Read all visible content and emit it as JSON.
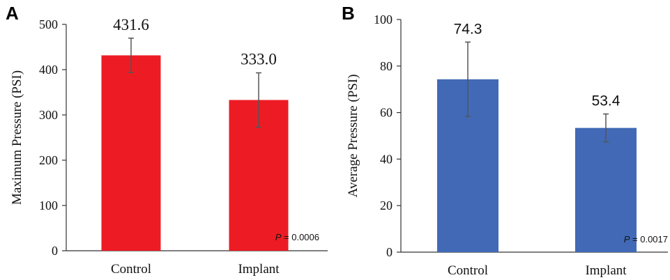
{
  "chart_data": [
    {
      "panel": "A",
      "type": "bar",
      "categories": [
        "Control",
        "Implant"
      ],
      "values": [
        431.6,
        333.0
      ],
      "value_labels": [
        "431.6",
        "333.0"
      ],
      "error": [
        38,
        60
      ],
      "ylabel": "Maximum Pressure (PSI)",
      "ylim": [
        0,
        500
      ],
      "yticks": [
        0,
        100,
        200,
        300,
        400,
        500
      ],
      "bar_color": "#ed1c24",
      "p_label": "P",
      "p_value": " = 0.0006",
      "value_font": "serif"
    },
    {
      "panel": "B",
      "type": "bar",
      "categories": [
        "Control",
        "Implant"
      ],
      "values": [
        74.3,
        53.4
      ],
      "value_labels": [
        "74.3",
        "53.4"
      ],
      "error": [
        16,
        6
      ],
      "ylabel": "Average Pressure (PSI)",
      "ylim": [
        0,
        100
      ],
      "yticks": [
        0,
        20,
        40,
        60,
        80,
        100
      ],
      "bar_color": "#4169b6",
      "p_label": "P",
      "p_value": " = 0.0017",
      "value_font": "sans"
    }
  ]
}
